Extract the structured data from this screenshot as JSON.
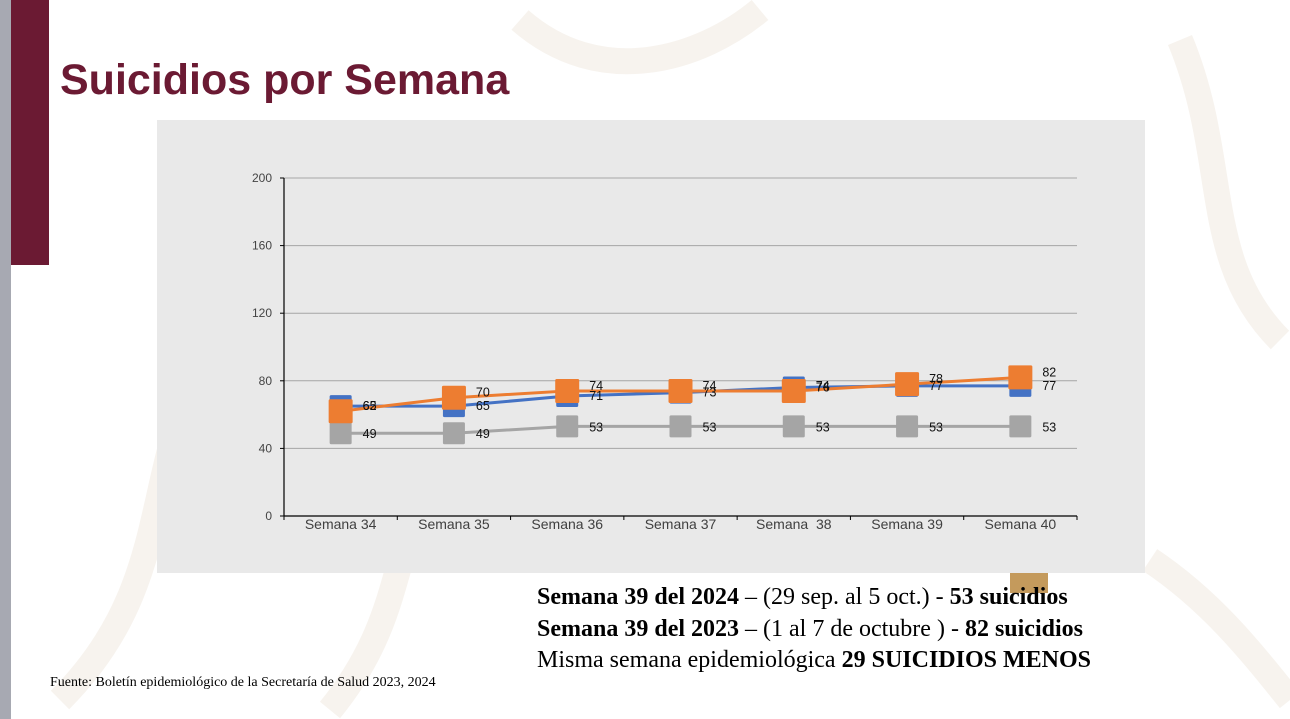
{
  "slide": {
    "title": "Suicidios por Semana",
    "source": "Fuente: Boletín epidemiológico de la Secretaría de Salud 2023, 2024"
  },
  "summary": {
    "line1": {
      "label": "Semana 39 del 2024",
      "dates": " – (29 sep. al 5 oct.) - ",
      "count": "53 suicidios"
    },
    "line2": {
      "label": "Semana 39 del 2023",
      "dates": " – (1 al 7 de octubre ) - ",
      "count": "82 suicidios"
    },
    "line3": {
      "text": "Misma semana epidemiológica ",
      "emphasis": "29 SUICIDIOS MENOS"
    }
  },
  "colors": {
    "maroon": "#6b1a33",
    "sidebar_gray": "#a7a9b2",
    "gold": "#c49a5c",
    "panel": "#e9e9e9",
    "blue_series": "#4472c4",
    "orange_series": "#ed7d31",
    "gray_series": "#a5a5a5"
  },
  "chart_data": {
    "type": "line",
    "categories": [
      "Semana 34",
      "Semana 35",
      "Semana 36",
      "Semana 37",
      "Semana  38",
      "Semana 39",
      "Semana 40"
    ],
    "ylim": [
      0,
      200
    ],
    "yticks": [
      0,
      40,
      80,
      120,
      160,
      200
    ],
    "grid": true,
    "legend": "none",
    "series": [
      {
        "color": "#4472c4",
        "values": [
          65,
          65,
          71,
          73,
          76,
          77,
          77
        ]
      },
      {
        "color": "#ed7d31",
        "values": [
          62,
          70,
          74,
          74,
          74,
          78,
          82
        ]
      },
      {
        "color": "#a5a5a5",
        "values": [
          49,
          49,
          53,
          53,
          53,
          53,
          53
        ]
      }
    ]
  }
}
